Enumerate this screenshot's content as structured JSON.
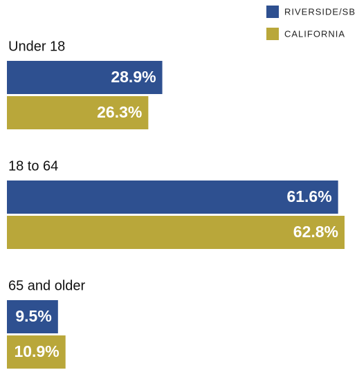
{
  "chart_data": {
    "type": "hbar",
    "categories": [
      "Under 18",
      "18 to 64",
      "65 and older"
    ],
    "series": [
      {
        "name": "RIVERSIDE/SB",
        "color": "#2e5090",
        "values": [
          28.9,
          61.6,
          9.5
        ],
        "value_labels": [
          "28.9%",
          "61.6%",
          "9.5%"
        ]
      },
      {
        "name": "CALIFORNIA",
        "color": "#b9a73a",
        "values": [
          26.3,
          62.8,
          10.9
        ],
        "value_labels": [
          "26.3%",
          "62.8%",
          "10.9%"
        ]
      }
    ],
    "legend": "top-right"
  }
}
